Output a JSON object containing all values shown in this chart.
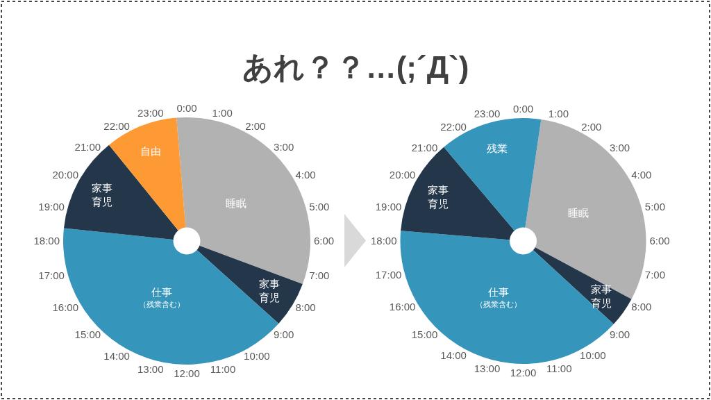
{
  "chart_data": [
    {
      "type": "pie",
      "title": "あれ？？…(;´Д`)",
      "categories": [
        "睡眠",
        "家事育児",
        "仕事（残業含む）",
        "家事育児",
        "自由"
      ],
      "values": [
        32,
        6,
        40,
        12.5,
        9.5
      ],
      "colors": [
        "#b2b2b2",
        "#243649",
        "#3595bb",
        "#243649",
        "#fd9a33"
      ],
      "annotations": [
        "0:00",
        "1:00",
        "2:00",
        "3:00",
        "4:00",
        "5:00",
        "6:00",
        "7:00",
        "8:00",
        "9:00",
        "10:00",
        "11:00",
        "12:00",
        "13:00",
        "14:00",
        "15:00",
        "16:00",
        "17:00",
        "18:00",
        "19:00",
        "20:00",
        "21:00",
        "22:00",
        "23:00"
      ]
    },
    {
      "type": "pie",
      "categories": [
        "睡眠",
        "家事育児",
        "仕事（残業含む）",
        "家事育児",
        "残業"
      ],
      "values": [
        30.5,
        4,
        39.5,
        12.5,
        13.5
      ],
      "colors": [
        "#b2b2b2",
        "#243649",
        "#3595bb",
        "#243649",
        "#3595bb"
      ],
      "annotations": [
        "0:00",
        "1:00",
        "2:00",
        "3:00",
        "4:00",
        "5:00",
        "6:00",
        "7:00",
        "8:00",
        "9:00",
        "10:00",
        "11:00",
        "12:00",
        "13:00",
        "14:00",
        "15:00",
        "16:00",
        "17:00",
        "18:00",
        "19:00",
        "20:00",
        "21:00",
        "22:00",
        "23:00"
      ]
    }
  ]
}
